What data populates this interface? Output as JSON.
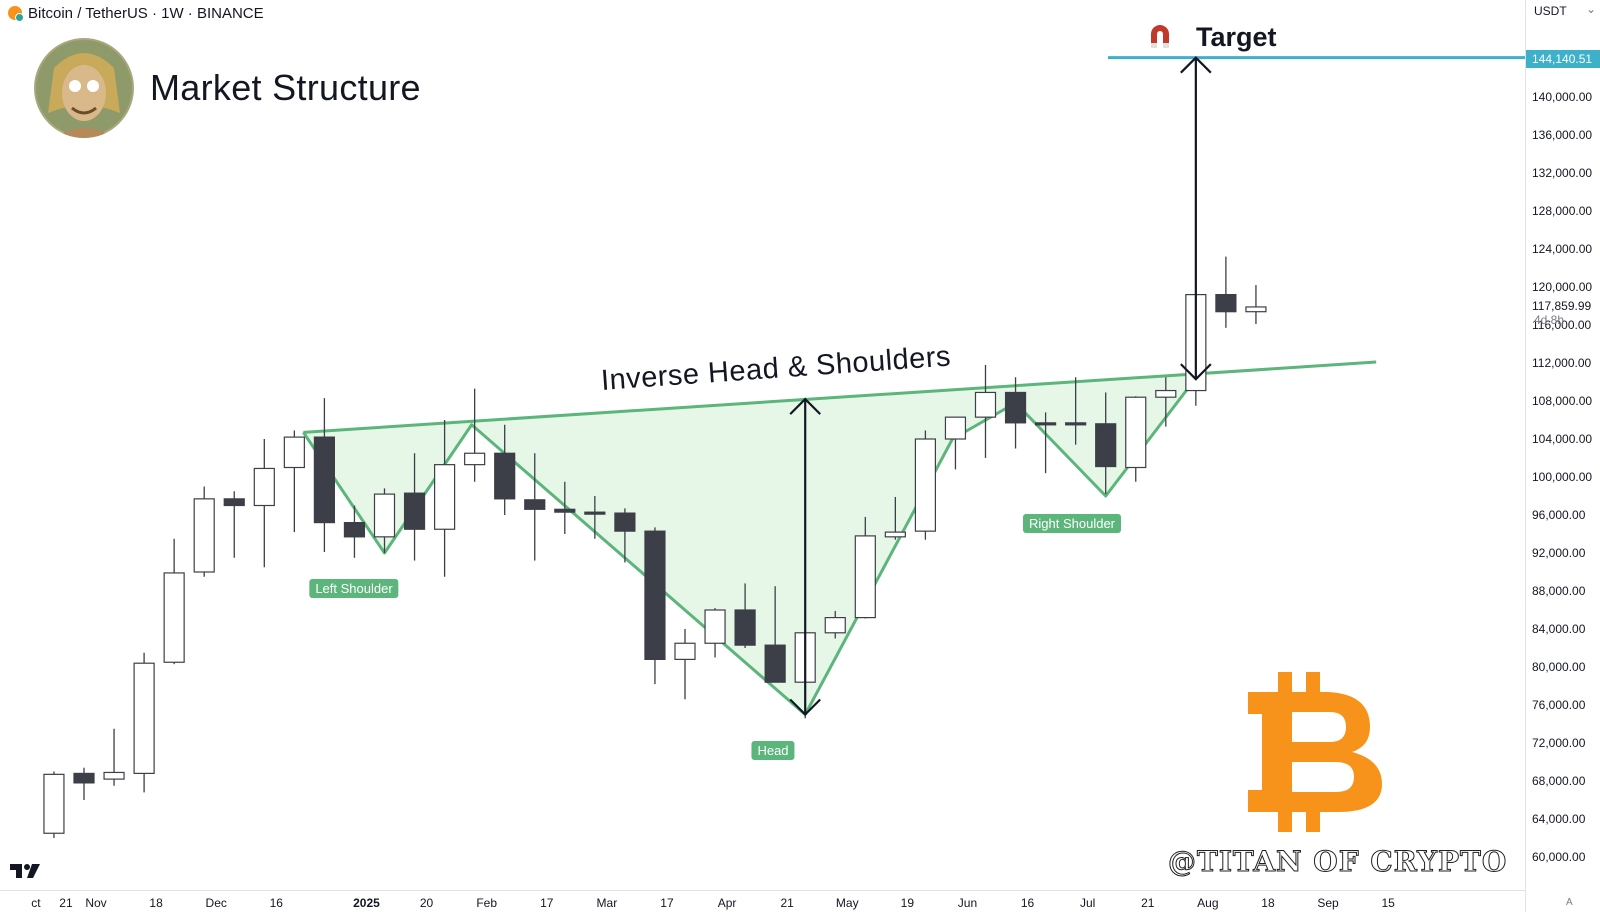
{
  "header": {
    "symbol_title": "Bitcoin / TetherUS · 1W · BINANCE"
  },
  "brand": {
    "title": "Market Structure",
    "watermark": "@TITAN OF CRYPTO"
  },
  "axis": {
    "currency": "USDT",
    "currency_arrow": "⌄",
    "price_badge": "144,140.51",
    "last_price": "117,859.99",
    "countdown": "4d 8h",
    "bottom_right_label": "A"
  },
  "annotations": {
    "pattern": "Inverse Head & Shoulders",
    "target": "Target",
    "left_shoulder": "Left Shoulder",
    "head": "Head",
    "right_shoulder": "Right Shoulder"
  },
  "colors": {
    "up_body": "#ffffff",
    "down_body": "#3c3f47",
    "wick": "#3c3f47",
    "pattern_line": "#5cb57a",
    "pattern_fill": "#e6f7e8",
    "target_line": "#3fb0c9",
    "bitcoin_orange": "#f7931a"
  },
  "icons": {
    "magnet": "magnet-icon",
    "logo": "tradingview-logo",
    "bitcoin": "bitcoin-logo"
  },
  "chart_data": {
    "type": "candlestick",
    "title": "Bitcoin / TetherUS · 1W · BINANCE",
    "ylim": [
      58000,
      149500
    ],
    "y_ticks": [
      60000,
      64000,
      68000,
      72000,
      76000,
      80000,
      84000,
      88000,
      92000,
      96000,
      100000,
      104000,
      108000,
      112000,
      116000,
      120000,
      124000,
      128000,
      132000,
      136000,
      140000
    ],
    "y_tick_labels": [
      "60,000.00",
      "64,000.00",
      "68,000.00",
      "72,000.00",
      "76,000.00",
      "80,000.00",
      "84,000.00",
      "88,000.00",
      "92,000.00",
      "96,000.00",
      "100,000.00",
      "104,000.00",
      "108,000.00",
      "112,000.00",
      "116,000.00",
      "120,000.00",
      "124,000.00",
      "128,000.00",
      "132,000.00",
      "136,000.00",
      "140,000.00"
    ],
    "x_ticks": [
      {
        "label": "ct",
        "week": -1.6
      },
      {
        "label": "21",
        "week": -0.6
      },
      {
        "label": "Nov",
        "week": 0.4
      },
      {
        "label": "18",
        "week": 2.4
      },
      {
        "label": "Dec",
        "week": 4.4
      },
      {
        "label": "16",
        "week": 6.4
      },
      {
        "label": "2025",
        "week": 9.4,
        "bold": true
      },
      {
        "label": "20",
        "week": 11.4
      },
      {
        "label": "Feb",
        "week": 13.4
      },
      {
        "label": "17",
        "week": 15.4
      },
      {
        "label": "Mar",
        "week": 17.4
      },
      {
        "label": "17",
        "week": 19.4
      },
      {
        "label": "Apr",
        "week": 21.4
      },
      {
        "label": "21",
        "week": 23.4
      },
      {
        "label": "May",
        "week": 25.4
      },
      {
        "label": "19",
        "week": 27.4
      },
      {
        "label": "Jun",
        "week": 29.4
      },
      {
        "label": "16",
        "week": 31.4
      },
      {
        "label": "Jul",
        "week": 33.4
      },
      {
        "label": "21",
        "week": 35.4
      },
      {
        "label": "Aug",
        "week": 37.4
      },
      {
        "label": "18",
        "week": 39.4
      },
      {
        "label": "Sep",
        "week": 41.4
      },
      {
        "label": "15",
        "week": 43.4
      }
    ],
    "candles": [
      {
        "week": -1,
        "o": 62500,
        "h": 69000,
        "l": 62000,
        "c": 68700
      },
      {
        "week": 0,
        "o": 68800,
        "h": 69400,
        "l": 66000,
        "c": 67800
      },
      {
        "week": 1,
        "o": 68200,
        "h": 73500,
        "l": 67500,
        "c": 68900
      },
      {
        "week": 2,
        "o": 68800,
        "h": 81500,
        "l": 66800,
        "c": 80400
      },
      {
        "week": 3,
        "o": 80500,
        "h": 93500,
        "l": 80300,
        "c": 89900
      },
      {
        "week": 4,
        "o": 90000,
        "h": 99000,
        "l": 89500,
        "c": 97700
      },
      {
        "week": 5,
        "o": 97700,
        "h": 98500,
        "l": 91500,
        "c": 97000
      },
      {
        "week": 6,
        "o": 97000,
        "h": 104000,
        "l": 90500,
        "c": 100900
      },
      {
        "week": 7,
        "o": 101000,
        "h": 104900,
        "l": 94200,
        "c": 104200
      },
      {
        "week": 8,
        "o": 104200,
        "h": 108300,
        "l": 92100,
        "c": 95200
      },
      {
        "week": 9,
        "o": 95200,
        "h": 97000,
        "l": 91500,
        "c": 93700
      },
      {
        "week": 10,
        "o": 93700,
        "h": 98800,
        "l": 92000,
        "c": 98200
      },
      {
        "week": 11,
        "o": 98300,
        "h": 102500,
        "l": 91200,
        "c": 94500
      },
      {
        "week": 12,
        "o": 94500,
        "h": 106000,
        "l": 89500,
        "c": 101300
      },
      {
        "week": 13,
        "o": 101300,
        "h": 109300,
        "l": 99500,
        "c": 102500
      },
      {
        "week": 14,
        "o": 102500,
        "h": 105500,
        "l": 96000,
        "c": 97700
      },
      {
        "week": 15,
        "o": 97600,
        "h": 102500,
        "l": 91200,
        "c": 96600
      },
      {
        "week": 16,
        "o": 96600,
        "h": 99500,
        "l": 94000,
        "c": 96300
      },
      {
        "week": 17,
        "o": 96300,
        "h": 98000,
        "l": 93500,
        "c": 96200
      },
      {
        "week": 18,
        "o": 96200,
        "h": 96700,
        "l": 91000,
        "c": 94300
      },
      {
        "week": 19,
        "o": 94300,
        "h": 94700,
        "l": 78200,
        "c": 80800
      },
      {
        "week": 20,
        "o": 80800,
        "h": 84000,
        "l": 76600,
        "c": 82500
      },
      {
        "week": 21,
        "o": 82500,
        "h": 86200,
        "l": 81000,
        "c": 86000
      },
      {
        "week": 22,
        "o": 86000,
        "h": 88800,
        "l": 82000,
        "c": 82300
      },
      {
        "week": 23,
        "o": 82300,
        "h": 88500,
        "l": 78500,
        "c": 78400
      },
      {
        "week": 24,
        "o": 78400,
        "h": 84600,
        "l": 74600,
        "c": 83600
      },
      {
        "week": 25,
        "o": 83600,
        "h": 85900,
        "l": 83000,
        "c": 85200
      },
      {
        "week": 26,
        "o": 85200,
        "h": 95800,
        "l": 85100,
        "c": 93800
      },
      {
        "week": 27,
        "o": 93700,
        "h": 97900,
        "l": 93400,
        "c": 94200
      },
      {
        "week": 28,
        "o": 94300,
        "h": 104900,
        "l": 93400,
        "c": 104000
      },
      {
        "week": 29,
        "o": 104000,
        "h": 106200,
        "l": 100800,
        "c": 106300
      },
      {
        "week": 30,
        "o": 106300,
        "h": 111800,
        "l": 102000,
        "c": 108900
      },
      {
        "week": 31,
        "o": 108900,
        "h": 110500,
        "l": 103000,
        "c": 105700
      },
      {
        "week": 32,
        "o": 105700,
        "h": 106800,
        "l": 100400,
        "c": 105600
      },
      {
        "week": 33,
        "o": 105700,
        "h": 110500,
        "l": 103400,
        "c": 105600
      },
      {
        "week": 34,
        "o": 105600,
        "h": 108900,
        "l": 98200,
        "c": 101100
      },
      {
        "week": 35,
        "o": 101000,
        "h": 108500,
        "l": 99500,
        "c": 108400
      },
      {
        "week": 36,
        "o": 108400,
        "h": 110500,
        "l": 105300,
        "c": 109100
      },
      {
        "week": 37,
        "o": 109100,
        "h": 119500,
        "l": 107500,
        "c": 119200
      },
      {
        "week": 38,
        "o": 119200,
        "h": 123200,
        "l": 115700,
        "c": 117400
      },
      {
        "week": 39,
        "o": 117400,
        "h": 120200,
        "l": 116100,
        "c": 117900
      }
    ],
    "pattern": {
      "name": "Inverse Head & Shoulders",
      "neckline": [
        {
          "week": 7.3,
          "price": 104700
        },
        {
          "week": 43.0,
          "price": 112100
        }
      ],
      "path": [
        {
          "week": 7.3,
          "price": 104700
        },
        {
          "week": 10.0,
          "price": 92000
        },
        {
          "week": 12.9,
          "price": 105500
        },
        {
          "week": 24.0,
          "price": 75000
        },
        {
          "week": 28.9,
          "price": 104000
        },
        {
          "week": 31.0,
          "price": 107800
        },
        {
          "week": 34.0,
          "price": 98000
        },
        {
          "week": 36.9,
          "price": 110000
        }
      ],
      "head_arrow": {
        "week": 24.0,
        "from": 75000,
        "to": 108200
      },
      "target_arrow": {
        "week": 37.0,
        "from": 110300,
        "to": 144140.51
      },
      "target_price": 144140.51
    },
    "last_price": 117859.99
  }
}
